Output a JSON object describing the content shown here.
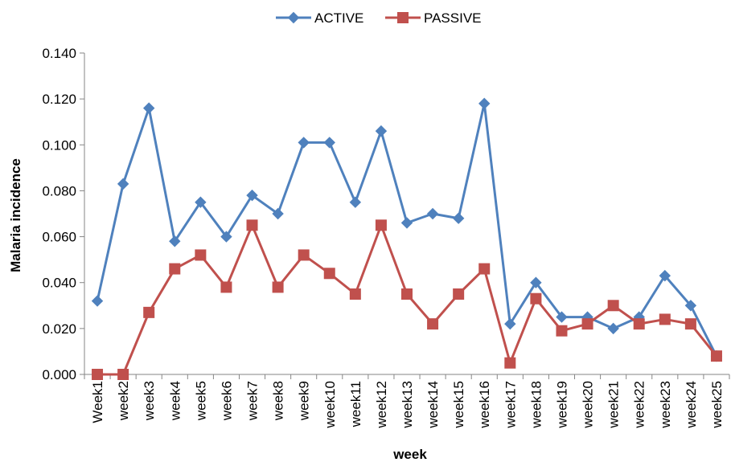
{
  "chart_data": {
    "type": "line",
    "xlabel": "week",
    "ylabel": "Malaria incidence",
    "ylim": [
      0,
      0.14
    ],
    "yticks": [
      "0.000",
      "0.020",
      "0.040",
      "0.060",
      "0.080",
      "0.100",
      "0.120",
      "0.140"
    ],
    "grid": false,
    "legend_position": "top-center",
    "categories": [
      "Week1",
      "week2",
      "week3",
      "week4",
      "week5",
      "week6",
      "week7",
      "week8",
      "week9",
      "week10",
      "week11",
      "week12",
      "week13",
      "week14",
      "week15",
      "week16",
      "week17",
      "week18",
      "week19",
      "week20",
      "week21",
      "week22",
      "week23",
      "week24",
      "week25"
    ],
    "series": [
      {
        "name": "ACTIVE",
        "color": "#4F81BD",
        "marker": "diamond",
        "values": [
          0.032,
          0.083,
          0.116,
          0.058,
          0.075,
          0.06,
          0.078,
          0.07,
          0.101,
          0.101,
          0.075,
          0.106,
          0.066,
          0.07,
          0.068,
          0.118,
          0.022,
          0.04,
          0.025,
          0.025,
          0.02,
          0.025,
          0.043,
          0.03,
          0.008
        ]
      },
      {
        "name": "PASSIVE",
        "color": "#C0504D",
        "marker": "square",
        "values": [
          0.0,
          0.0,
          0.027,
          0.046,
          0.052,
          0.038,
          0.065,
          0.038,
          0.052,
          0.044,
          0.035,
          0.065,
          0.035,
          0.022,
          0.035,
          0.046,
          0.005,
          0.033,
          0.019,
          0.022,
          0.03,
          0.022,
          0.024,
          0.022,
          0.008
        ]
      }
    ]
  }
}
